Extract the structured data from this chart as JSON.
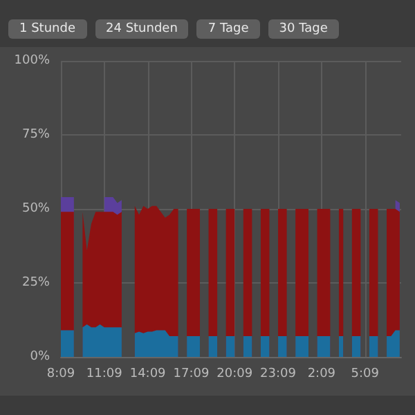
{
  "chart_data": {
    "type": "area",
    "stacked": true,
    "grid": true,
    "annotations": [
      "1 Stunde",
      "24 Stunden",
      "7 Tage",
      "30 Tage"
    ],
    "x": [
      "--01-01T08:09",
      "--01-01T08:27",
      "--01-01T08:45",
      "--01-01T09:03",
      "--01-01T09:21",
      "--01-01T09:39",
      "--01-01T09:57",
      "--01-01T10:15",
      "--01-01T10:33",
      "--01-01T10:51",
      "--01-01T11:09",
      "--01-01T11:27",
      "--01-01T11:45",
      "--01-01T12:03",
      "--01-01T12:21",
      "--01-01T12:39",
      "--01-01T12:57",
      "--01-01T13:15",
      "--01-01T13:33",
      "--01-01T13:51",
      "--01-01T14:09",
      "--01-01T14:27",
      "--01-01T14:45",
      "--01-01T15:03",
      "--01-01T15:21",
      "--01-01T15:39",
      "--01-01T15:57",
      "--01-01T16:15",
      "--01-01T16:33",
      "--01-01T16:51",
      "--01-01T17:09",
      "--01-01T17:27",
      "--01-01T17:45",
      "--01-01T18:03",
      "--01-01T18:21",
      "--01-01T18:39",
      "--01-01T18:57",
      "--01-01T19:15",
      "--01-01T19:33",
      "--01-01T19:51",
      "--01-01T20:09",
      "--01-01T20:27",
      "--01-01T20:45",
      "--01-01T21:03",
      "--01-01T21:21",
      "--01-01T21:39",
      "--01-01T21:57",
      "--01-01T22:15",
      "--01-01T22:33",
      "--01-01T22:51",
      "--01-01T23:09",
      "--01-01T23:27",
      "--01-01T23:45",
      "--01-02T00:03",
      "--01-02T00:21",
      "--01-02T00:39",
      "--01-02T00:57",
      "--01-02T01:15",
      "--01-02T01:33",
      "--01-02T01:51",
      "--01-02T02:09",
      "--01-02T02:27",
      "--01-02T02:45",
      "--01-02T03:03",
      "--01-02T03:21",
      "--01-02T03:39",
      "--01-02T03:57",
      "--01-02T04:15",
      "--01-02T04:33",
      "--01-02T04:51",
      "--01-02T05:09",
      "--01-02T05:27",
      "--01-02T05:45",
      "--01-02T06:03",
      "--01-02T06:21",
      "--01-02T06:39",
      "--01-02T06:57",
      "--01-02T07:15",
      "--01-02T07:33"
    ],
    "series": [
      {
        "color": "#1b6e9e",
        "values": [
          9,
          9,
          9,
          9,
          null,
          10,
          11,
          10,
          10,
          11,
          10,
          10,
          10,
          10,
          10,
          null,
          null,
          8,
          8.5,
          8,
          8.5,
          8.5,
          9,
          9,
          9,
          7,
          7,
          7,
          null,
          7,
          7,
          7,
          7,
          null,
          7,
          7,
          7,
          null,
          7,
          7,
          7,
          null,
          7,
          7,
          7,
          null,
          7,
          7,
          7,
          null,
          7,
          7,
          7,
          null,
          7,
          7,
          7,
          7,
          null,
          7,
          7,
          7,
          7,
          null,
          7,
          7,
          null,
          7,
          7,
          7,
          null,
          7,
          7,
          7,
          null,
          7,
          7,
          9,
          9
        ]
      },
      {
        "color": "#8e1212",
        "values": [
          40,
          40,
          40,
          40,
          null,
          39,
          25,
          35,
          39,
          38,
          39,
          39,
          39,
          38,
          39,
          null,
          null,
          43,
          39.5,
          43,
          41.5,
          42.5,
          42,
          40,
          38,
          41,
          43,
          43,
          null,
          43,
          43,
          43,
          43,
          null,
          43,
          43,
          43,
          null,
          43,
          43,
          43,
          null,
          43,
          43,
          43,
          null,
          43,
          43,
          43,
          null,
          43,
          43,
          43,
          null,
          43,
          43,
          43,
          43,
          null,
          43,
          43,
          43,
          43,
          null,
          43,
          43,
          null,
          43,
          43,
          43,
          null,
          43,
          43,
          43,
          null,
          43,
          43,
          41,
          40
        ]
      },
      {
        "color": "#5b3f9c",
        "values": [
          5,
          5,
          5,
          5,
          null,
          null,
          null,
          null,
          null,
          null,
          5,
          5,
          5,
          4,
          4,
          null,
          null,
          null,
          null,
          null,
          null,
          null,
          null,
          null,
          null,
          null,
          null,
          null,
          null,
          null,
          null,
          null,
          null,
          null,
          null,
          null,
          null,
          null,
          null,
          null,
          null,
          null,
          null,
          null,
          null,
          null,
          null,
          null,
          null,
          null,
          null,
          null,
          null,
          null,
          null,
          null,
          null,
          null,
          null,
          null,
          null,
          null,
          null,
          null,
          null,
          null,
          null,
          null,
          null,
          null,
          null,
          null,
          null,
          null,
          null,
          null,
          null,
          3,
          3
        ]
      }
    ],
    "xlim": [
      "--01-01T08:09",
      "--01-02T07:39"
    ],
    "xticks": [
      {
        "value": "--01-01T08:09",
        "label": "8:09"
      },
      {
        "value": "--01-01T11:09",
        "label": "11:09"
      },
      {
        "value": "--01-01T14:09",
        "label": "14:09"
      },
      {
        "value": "--01-01T17:09",
        "label": "17:09"
      },
      {
        "value": "--01-01T20:09",
        "label": "20:09"
      },
      {
        "value": "--01-01T23:09",
        "label": "23:09"
      },
      {
        "value": "--01-02T02:09",
        "label": "2:09"
      },
      {
        "value": "--01-02T05:09",
        "label": "5:09"
      }
    ],
    "ylim": [
      0,
      100
    ],
    "yticks": [
      {
        "value": 0,
        "label": "0%"
      },
      {
        "value": 25,
        "label": "25%"
      },
      {
        "value": 50,
        "label": "50%"
      },
      {
        "value": 75,
        "label": "75%"
      },
      {
        "value": 100,
        "label": "100%"
      }
    ]
  }
}
